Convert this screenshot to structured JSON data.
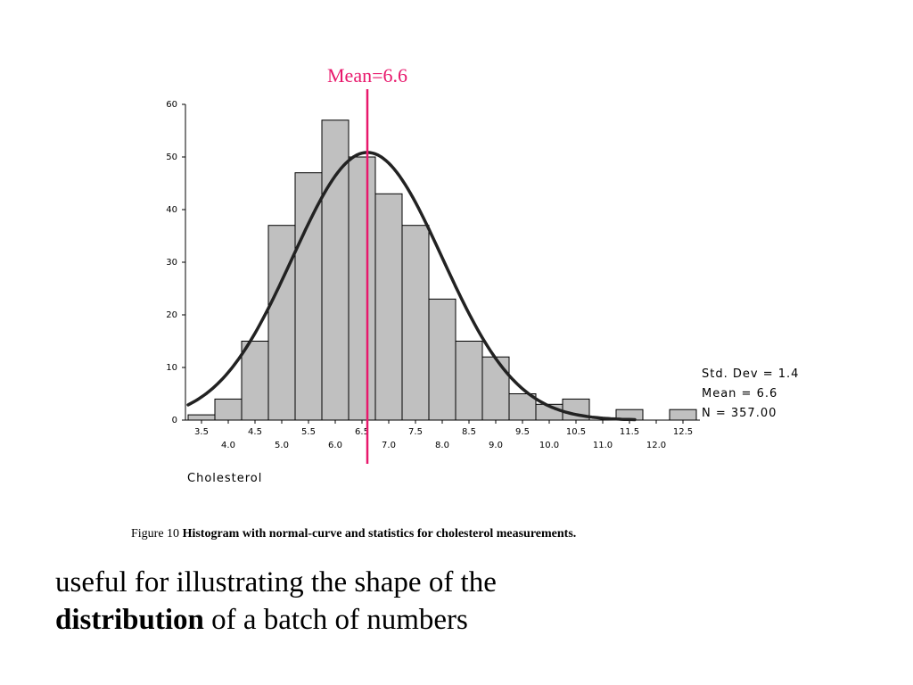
{
  "colors": {
    "bar_fill": "#c0c0c0",
    "bar_stroke": "#000000",
    "curve": "#222222",
    "mean_line": "#e8186c",
    "mean_label": "#e8186c"
  },
  "chart_data": {
    "type": "bar",
    "subtype": "histogram",
    "bin_width": 0.5,
    "bin_centers": [
      3.5,
      4.0,
      4.5,
      5.0,
      5.5,
      6.0,
      6.5,
      7.0,
      7.5,
      8.0,
      8.5,
      9.0,
      9.5,
      10.0,
      10.5,
      11.0,
      11.5,
      12.0,
      12.5
    ],
    "values": [
      1,
      4,
      15,
      37,
      47,
      57,
      50,
      43,
      37,
      23,
      15,
      12,
      5,
      3,
      4,
      0,
      2,
      0,
      2
    ],
    "x_ticks_top_row": [
      "3.5",
      "4.5",
      "5.5",
      "6.5",
      "7.5",
      "8.5",
      "9.5",
      "10.5",
      "11.5",
      "12.5"
    ],
    "x_ticks_bottom_row": [
      "4.0",
      "5.0",
      "6.0",
      "7.0",
      "8.0",
      "9.0",
      "10.0",
      "11.0",
      "12.0"
    ],
    "y_ticks": [
      "0",
      "10",
      "20",
      "30",
      "40",
      "50",
      "60"
    ],
    "ylim": [
      0,
      60
    ],
    "xlabel": "Cholesterol",
    "ylabel": "",
    "title": "",
    "normal_curve": {
      "mean": 6.6,
      "std": 1.4,
      "n": 357,
      "bin_width": 0.5
    },
    "mean_marker": {
      "value": 6.6,
      "label": "Mean=6.6"
    },
    "stats": [
      "Std. Dev = 1.4",
      "Mean = 6.6",
      "N = 357.00"
    ]
  },
  "caption": {
    "prefix": "Figure 10 ",
    "bold": "Histogram with normal-curve and statistics for cholesterol measurements."
  },
  "body": {
    "line1": "useful for illustrating the shape of the",
    "bold_word": "distribution",
    "line2_rest": " of a batch of numbers"
  }
}
